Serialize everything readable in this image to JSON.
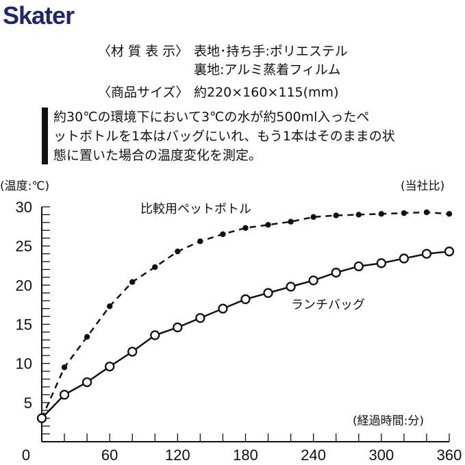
{
  "brand": {
    "logo": "Skater",
    "color": "#1f2570"
  },
  "specs": {
    "material_label": "〈材 質 表 示〉",
    "material_line1": "表地･持ち手:ポリエステル",
    "material_line2": "裏地:アルミ蒸着フィルム",
    "size_label": "〈商品サイズ〉",
    "size_value": "約220×160×115(mm)"
  },
  "description": {
    "lines": [
      "約30℃の環境下において3℃の水が約500ml入ったペ",
      "ットボトルを1本はバッグにいれ、もう1本はそのままの状",
      "態に置いた場合の温度変化を測定。"
    ]
  },
  "chart_data": {
    "type": "line",
    "title": "",
    "ylabel": "(温度:℃)",
    "xlabel": "(経過時間:分)",
    "note": "(当社比)",
    "xlim": [
      0,
      360
    ],
    "ylim": [
      0,
      30
    ],
    "xticks": [
      0,
      60,
      120,
      180,
      240,
      300,
      360
    ],
    "yticks": [
      5,
      10,
      15,
      20,
      25,
      30
    ],
    "x": [
      0,
      20,
      40,
      60,
      80,
      100,
      120,
      140,
      160,
      180,
      200,
      220,
      240,
      260,
      280,
      300,
      320,
      340,
      360
    ],
    "series": [
      {
        "name": "比較用ペットボトル",
        "style": "dashed-filled",
        "values": [
          3,
          9.5,
          13.4,
          17.3,
          20.4,
          22.3,
          24.3,
          25.6,
          26.5,
          27.3,
          27.7,
          28.1,
          28.7,
          28.9,
          29.0,
          29.1,
          29.2,
          29.3,
          29.1
        ]
      },
      {
        "name": "ランチバッグ",
        "style": "solid-open",
        "values": [
          3,
          6.0,
          7.6,
          9.6,
          11.5,
          13.6,
          14.6,
          15.8,
          17.0,
          18.2,
          19.0,
          19.8,
          20.6,
          21.6,
          22.4,
          22.8,
          23.4,
          24.0,
          24.3
        ]
      }
    ],
    "grid": false
  }
}
